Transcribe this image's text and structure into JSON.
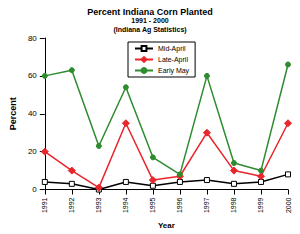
{
  "chart_data": {
    "type": "line",
    "title": "Percent Indiana Corn Planted",
    "subtitle": "1991 - 2000",
    "annotations": [
      "(Indiana Ag Statistics)"
    ],
    "x_label": "Year",
    "y_label": "Percent",
    "categories": [
      "1991",
      "1992",
      "1993",
      "1994",
      "1995",
      "1996",
      "1997",
      "1998",
      "1999",
      "2000"
    ],
    "series": [
      {
        "name": "Mid-April",
        "color": "#000000",
        "marker": "square",
        "values": [
          4,
          3,
          0,
          4,
          2,
          4,
          5,
          3,
          4,
          8
        ]
      },
      {
        "name": "Late-April",
        "color": "#e8262b",
        "marker": "diamond",
        "values": [
          20,
          10,
          1,
          35,
          5,
          7,
          30,
          10,
          7,
          35
        ]
      },
      {
        "name": "Early May",
        "color": "#2e8b2e",
        "marker": "circle",
        "values": [
          60,
          63,
          23,
          54,
          17,
          8,
          60,
          14,
          10,
          66
        ]
      }
    ],
    "ylim": [
      0,
      80
    ],
    "yticks": [
      0,
      20,
      40,
      60,
      80
    ],
    "grid": false,
    "legend": "top"
  }
}
